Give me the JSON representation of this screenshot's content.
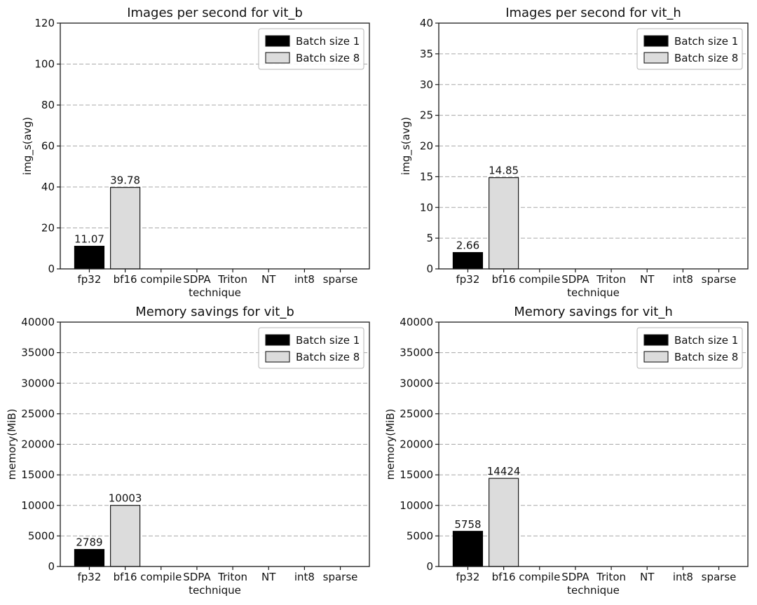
{
  "figure": {
    "background": "#ffffff"
  },
  "chart_data": [
    {
      "id": "images-per-second-vit-b",
      "type": "bar",
      "title": "Images per second for vit_b",
      "xlabel": "technique",
      "ylabel": "img_s(avg)",
      "categories": [
        "fp32",
        "bf16",
        "compile",
        "SDPA",
        "Triton",
        "NT",
        "int8",
        "sparse"
      ],
      "ylim": [
        0,
        120
      ],
      "yticks": [
        0,
        20,
        40,
        60,
        80,
        100,
        120
      ],
      "grid": true,
      "legend": {
        "position": "upper right",
        "entries": [
          {
            "label": "Batch size 1",
            "color": "#000000"
          },
          {
            "label": "Batch size 8",
            "color": "#dcdcdc"
          }
        ]
      },
      "series": [
        {
          "name": "Batch size 1",
          "color": "#000000",
          "edge": "#000000",
          "values": [
            11.07,
            null,
            null,
            null,
            null,
            null,
            null,
            null
          ],
          "value_labels": [
            "11.07",
            null,
            null,
            null,
            null,
            null,
            null,
            null
          ]
        },
        {
          "name": "Batch size 8",
          "color": "#dcdcdc",
          "edge": "#1a1a1a",
          "values": [
            null,
            39.78,
            null,
            null,
            null,
            null,
            null,
            null
          ],
          "value_labels": [
            null,
            "39.78",
            null,
            null,
            null,
            null,
            null,
            null
          ]
        }
      ]
    },
    {
      "id": "images-per-second-vit-h",
      "type": "bar",
      "title": "Images per second for vit_h",
      "xlabel": "technique",
      "ylabel": "img_s(avg)",
      "categories": [
        "fp32",
        "bf16",
        "compile",
        "SDPA",
        "Triton",
        "NT",
        "int8",
        "sparse"
      ],
      "ylim": [
        0,
        40
      ],
      "yticks": [
        0,
        5,
        10,
        15,
        20,
        25,
        30,
        35,
        40
      ],
      "grid": true,
      "legend": {
        "position": "upper right",
        "entries": [
          {
            "label": "Batch size 1",
            "color": "#000000"
          },
          {
            "label": "Batch size 8",
            "color": "#dcdcdc"
          }
        ]
      },
      "series": [
        {
          "name": "Batch size 1",
          "color": "#000000",
          "edge": "#000000",
          "values": [
            2.66,
            null,
            null,
            null,
            null,
            null,
            null,
            null
          ],
          "value_labels": [
            "2.66",
            null,
            null,
            null,
            null,
            null,
            null,
            null
          ]
        },
        {
          "name": "Batch size 8",
          "color": "#dcdcdc",
          "edge": "#1a1a1a",
          "values": [
            null,
            14.85,
            null,
            null,
            null,
            null,
            null,
            null
          ],
          "value_labels": [
            null,
            "14.85",
            null,
            null,
            null,
            null,
            null,
            null
          ]
        }
      ]
    },
    {
      "id": "memory-savings-vit-b",
      "type": "bar",
      "title": "Memory savings for vit_b",
      "xlabel": "technique",
      "ylabel": "memory(MiB)",
      "categories": [
        "fp32",
        "bf16",
        "compile",
        "SDPA",
        "Triton",
        "NT",
        "int8",
        "sparse"
      ],
      "ylim": [
        0,
        40000
      ],
      "yticks": [
        0,
        5000,
        10000,
        15000,
        20000,
        25000,
        30000,
        35000,
        40000
      ],
      "grid": true,
      "legend": {
        "position": "upper right",
        "entries": [
          {
            "label": "Batch size 1",
            "color": "#000000"
          },
          {
            "label": "Batch size 8",
            "color": "#dcdcdc"
          }
        ]
      },
      "series": [
        {
          "name": "Batch size 1",
          "color": "#000000",
          "edge": "#000000",
          "values": [
            2789,
            null,
            null,
            null,
            null,
            null,
            null,
            null
          ],
          "value_labels": [
            "2789",
            null,
            null,
            null,
            null,
            null,
            null,
            null
          ]
        },
        {
          "name": "Batch size 8",
          "color": "#dcdcdc",
          "edge": "#1a1a1a",
          "values": [
            null,
            10003,
            null,
            null,
            null,
            null,
            null,
            null
          ],
          "value_labels": [
            null,
            "10003",
            null,
            null,
            null,
            null,
            null,
            null
          ]
        }
      ]
    },
    {
      "id": "memory-savings-vit-h",
      "type": "bar",
      "title": "Memory savings for vit_h",
      "xlabel": "technique",
      "ylabel": "memory(MiB)",
      "categories": [
        "fp32",
        "bf16",
        "compile",
        "SDPA",
        "Triton",
        "NT",
        "int8",
        "sparse"
      ],
      "ylim": [
        0,
        40000
      ],
      "yticks": [
        0,
        5000,
        10000,
        15000,
        20000,
        25000,
        30000,
        35000,
        40000
      ],
      "grid": true,
      "legend": {
        "position": "upper right",
        "entries": [
          {
            "label": "Batch size 1",
            "color": "#000000"
          },
          {
            "label": "Batch size 8",
            "color": "#dcdcdc"
          }
        ]
      },
      "series": [
        {
          "name": "Batch size 1",
          "color": "#000000",
          "edge": "#000000",
          "values": [
            5758,
            null,
            null,
            null,
            null,
            null,
            null,
            null
          ],
          "value_labels": [
            "5758",
            null,
            null,
            null,
            null,
            null,
            null,
            null
          ]
        },
        {
          "name": "Batch size 8",
          "color": "#dcdcdc",
          "edge": "#1a1a1a",
          "values": [
            null,
            14424,
            null,
            null,
            null,
            null,
            null,
            null
          ],
          "value_labels": [
            null,
            "14424",
            null,
            null,
            null,
            null,
            null,
            null
          ]
        }
      ]
    }
  ]
}
